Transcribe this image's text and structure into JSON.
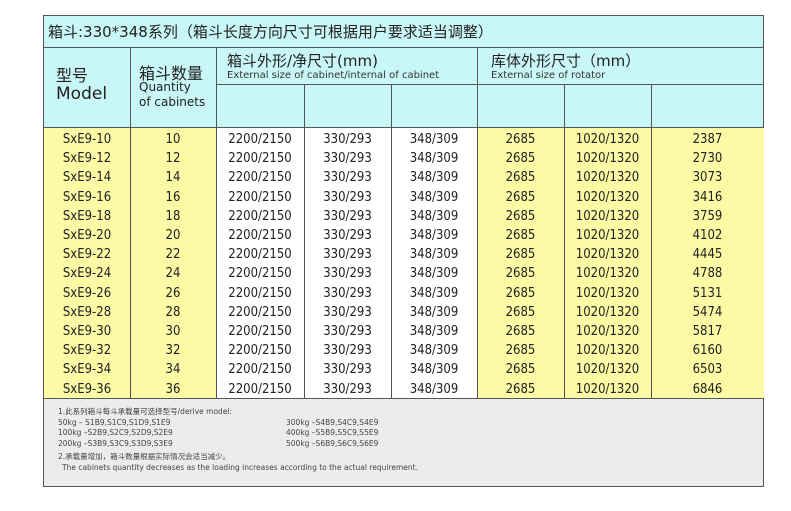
{
  "title": "箱斗:330*348系列（箱斗长度方向尺寸可根据用户要求适当调整）",
  "header": {
    "model_cn": "型号",
    "model_en": "Model",
    "qty_cn": "箱斗数量",
    "qty_en1": "Quantity",
    "qty_en2": "of cabinets",
    "cabinet_cn": "箱斗外形/净尺寸(mm)",
    "cabinet_en": "External size of cabinet/internal of cabinet",
    "rotator_cn": "库体外形尺寸（mm）",
    "rotator_en": "External size of rotator"
  },
  "rows": [
    [
      "SxE9-10",
      "10",
      "2200/2150",
      "330/293",
      "348/309",
      "2685",
      "1020/1320",
      "2387"
    ],
    [
      "SxE9-12",
      "12",
      "2200/2150",
      "330/293",
      "348/309",
      "2685",
      "1020/1320",
      "2730"
    ],
    [
      "SxE9-14",
      "14",
      "2200/2150",
      "330/293",
      "348/309",
      "2685",
      "1020/1320",
      "3073"
    ],
    [
      "SxE9-16",
      "16",
      "2200/2150",
      "330/293",
      "348/309",
      "2685",
      "1020/1320",
      "3416"
    ],
    [
      "SxE9-18",
      "18",
      "2200/2150",
      "330/293",
      "348/309",
      "2685",
      "1020/1320",
      "3759"
    ],
    [
      "SxE9-20",
      "20",
      "2200/2150",
      "330/293",
      "348/309",
      "2685",
      "1020/1320",
      "4102"
    ],
    [
      "SxE9-22",
      "22",
      "2200/2150",
      "330/293",
      "348/309",
      "2685",
      "1020/1320",
      "4445"
    ],
    [
      "SxE9-24",
      "24",
      "2200/2150",
      "330/293",
      "348/309",
      "2685",
      "1020/1320",
      "4788"
    ],
    [
      "SxE9-26",
      "26",
      "2200/2150",
      "330/293",
      "348/309",
      "2685",
      "1020/1320",
      "5131"
    ],
    [
      "SxE9-28",
      "28",
      "2200/2150",
      "330/293",
      "348/309",
      "2685",
      "1020/1320",
      "5474"
    ],
    [
      "SxE9-30",
      "30",
      "2200/2150",
      "330/293",
      "348/309",
      "2685",
      "1020/1320",
      "5817"
    ],
    [
      "SxE9-32",
      "32",
      "2200/2150",
      "330/293",
      "348/309",
      "2685",
      "1020/1320",
      "6160"
    ],
    [
      "SxE9-34",
      "34",
      "2200/2150",
      "330/293",
      "348/309",
      "2685",
      "1020/1320",
      "6503"
    ],
    [
      "SxE9-36",
      "36",
      "2200/2150",
      "330/293",
      "348/309",
      "2685",
      "1020/1320",
      "6846"
    ]
  ],
  "notes": {
    "n1": "1.此系列箱斗每斗承载量可选择型号/derive model:",
    "left": [
      "50kg – S1B9,S1C9,S1D9,S1E9",
      "100kg –S2B9,S2C9,S2D9,S2E9",
      "200kg –S3B9,S3C9,S3D9,S3E9"
    ],
    "right": [
      "300kg –S4B9,S4C9,S4E9",
      "400kg –S5B9,S5C9,S5E9",
      "500kg –S6B9,S6C9,S6E9"
    ],
    "n2": "2.承载量增加，箱斗数量根据实际情况会适当减少。",
    "n2_en": "The cabinets quantity decreases as the loading increases according to the actual requirement."
  },
  "colors": {
    "header": "#c9f6f7",
    "yellow": "#fdfaa6",
    "notes": "#ececec"
  }
}
